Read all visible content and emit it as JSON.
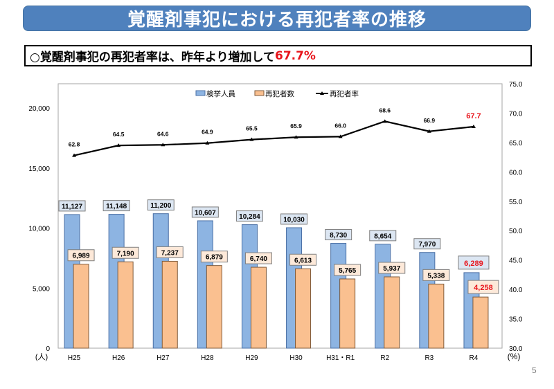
{
  "header": {
    "title": "覚醒剤事犯における再犯者率の推移",
    "subtitle_prefix": "○覚醒剤事犯の再犯者率は、昨年より増加して",
    "subtitle_highlight": "67.7%"
  },
  "page_number": "5",
  "colors": {
    "title_bg": "#4f81bd",
    "bar_arrests": "#8db4e2",
    "bar_arrests_border": "#4a6fa5",
    "bar_reoffenders": "#fac090",
    "bar_reoffenders_border": "#7f5a3a",
    "label_arrests_bg": "#dce6f2",
    "label_reoffenders_bg": "#fde9d9",
    "highlight": "#e8141b",
    "line": "#000000"
  },
  "chart_data": {
    "type": "bar+line",
    "title": "覚醒剤事犯における再犯者率の推移",
    "categories": [
      "H25",
      "H26",
      "H27",
      "H28",
      "H29",
      "H30",
      "H31・R1",
      "R2",
      "R3",
      "R4"
    ],
    "series": [
      {
        "name": "検挙人員",
        "type": "bar",
        "axis": "left",
        "values": [
          11127,
          11148,
          11200,
          10607,
          10284,
          10030,
          8730,
          8654,
          7970,
          6289
        ],
        "labels": [
          "11,127",
          "11,148",
          "11,200",
          "10,607",
          "10,284",
          "10,030",
          "8,730",
          "8,654",
          "7,970",
          "6,289"
        ]
      },
      {
        "name": "再犯者数",
        "type": "bar",
        "axis": "left",
        "values": [
          6989,
          7190,
          7237,
          6879,
          6740,
          6613,
          5765,
          5937,
          5338,
          4258
        ],
        "labels": [
          "6,989",
          "7,190",
          "7,237",
          "6,879",
          "6,740",
          "6,613",
          "5,765",
          "5,937",
          "5,338",
          "4,258"
        ]
      },
      {
        "name": "再犯者率",
        "type": "line",
        "axis": "right",
        "values": [
          62.8,
          64.5,
          64.6,
          64.9,
          65.5,
          65.9,
          66.0,
          68.6,
          66.9,
          67.7
        ],
        "labels": [
          "62.8",
          "64.5",
          "64.6",
          "64.9",
          "65.5",
          "65.9",
          "66.0",
          "68.6",
          "66.9",
          "67.7"
        ]
      }
    ],
    "y_left": {
      "label": "(人)",
      "range": [
        0,
        22000
      ],
      "ticks": [
        0,
        5000,
        10000,
        15000,
        20000
      ],
      "tick_labels": [
        "0",
        "5,000",
        "10,000",
        "15,000",
        "20,000"
      ]
    },
    "y_right": {
      "label": "(%)",
      "range": [
        30,
        75
      ],
      "ticks": [
        30,
        35,
        40,
        45,
        50,
        55,
        60,
        65,
        70,
        75
      ],
      "tick_labels": [
        "30.0",
        "35.0",
        "40.0",
        "45.0",
        "50.0",
        "55.0",
        "60.0",
        "65.0",
        "70.0",
        "75.0"
      ]
    },
    "legend": {
      "position": "top-center",
      "entries": [
        "検挙人員",
        "再犯者数",
        "再犯者率"
      ]
    },
    "highlighted_category": "R4",
    "grid": false
  }
}
